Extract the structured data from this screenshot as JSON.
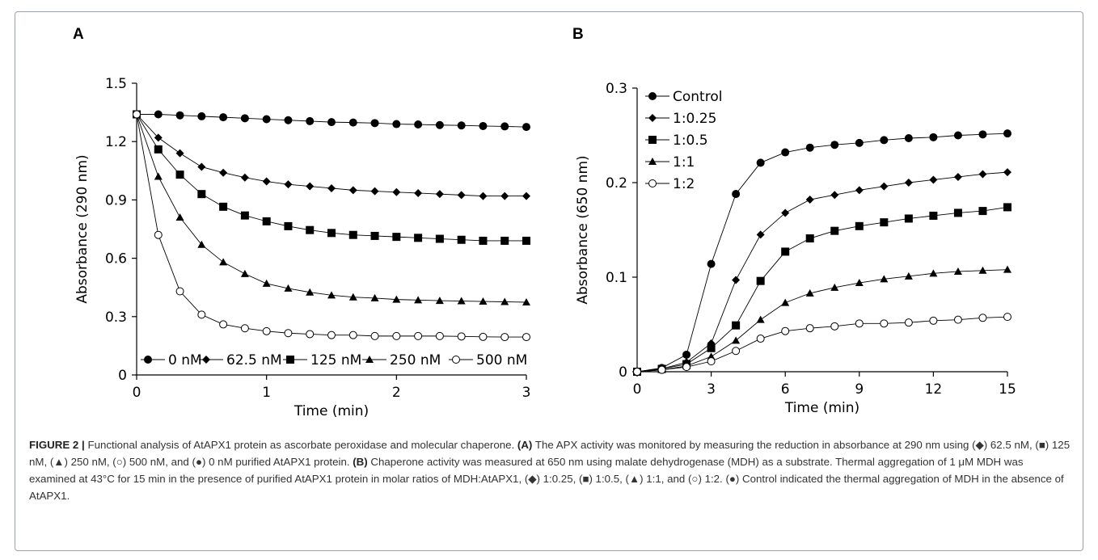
{
  "chart_data": [
    {
      "panel": "A",
      "type": "line",
      "xlabel": "Time (min)",
      "ylabel": "Absorbance (290 nm)",
      "xlim": [
        0,
        3
      ],
      "ylim": [
        0,
        1.5
      ],
      "xticks": [
        0,
        1,
        2,
        3
      ],
      "yticks": [
        0,
        0.3,
        0.6,
        0.9,
        1.2,
        1.5
      ],
      "ytick_labels": [
        "0",
        "0.3",
        "0.6",
        "0.9",
        "1.2",
        "1.5"
      ],
      "grid": false,
      "legend_position": "bottom",
      "x": [
        0,
        0.1667,
        0.3333,
        0.5,
        0.6667,
        0.8333,
        1.0,
        1.1667,
        1.3333,
        1.5,
        1.6667,
        1.8333,
        2.0,
        2.1667,
        2.3333,
        2.5,
        2.6667,
        2.8333,
        3.0
      ],
      "series": [
        {
          "name": "0 nM",
          "marker": "circle-filled",
          "values": [
            1.34,
            1.34,
            1.335,
            1.33,
            1.325,
            1.32,
            1.315,
            1.31,
            1.305,
            1.3,
            1.298,
            1.295,
            1.29,
            1.288,
            1.285,
            1.283,
            1.28,
            1.278,
            1.275
          ]
        },
        {
          "name": "62.5 nM",
          "marker": "diamond-filled",
          "values": [
            1.34,
            1.22,
            1.14,
            1.07,
            1.04,
            1.015,
            0.995,
            0.98,
            0.97,
            0.96,
            0.95,
            0.945,
            0.94,
            0.935,
            0.93,
            0.925,
            0.92,
            0.92,
            0.92
          ]
        },
        {
          "name": "125 nM",
          "marker": "square-filled",
          "values": [
            1.34,
            1.16,
            1.03,
            0.93,
            0.865,
            0.82,
            0.79,
            0.765,
            0.745,
            0.73,
            0.72,
            0.715,
            0.71,
            0.705,
            0.7,
            0.695,
            0.69,
            0.69,
            0.69
          ]
        },
        {
          "name": "250 nM",
          "marker": "triangle-filled",
          "values": [
            1.34,
            1.02,
            0.81,
            0.67,
            0.58,
            0.52,
            0.47,
            0.445,
            0.425,
            0.41,
            0.4,
            0.395,
            0.388,
            0.385,
            0.382,
            0.38,
            0.378,
            0.376,
            0.374
          ]
        },
        {
          "name": "500 nM",
          "marker": "circle-open",
          "values": [
            1.34,
            0.72,
            0.43,
            0.31,
            0.26,
            0.24,
            0.225,
            0.215,
            0.21,
            0.205,
            0.205,
            0.2,
            0.2,
            0.2,
            0.2,
            0.198,
            0.196,
            0.195,
            0.195
          ]
        }
      ]
    },
    {
      "panel": "B",
      "type": "line",
      "xlabel": "Time (min)",
      "ylabel": "Absorbance (650 nm)",
      "xlim": [
        0,
        15
      ],
      "ylim": [
        0,
        0.3
      ],
      "xticks": [
        0,
        3,
        6,
        9,
        12,
        15
      ],
      "yticks": [
        0,
        0.1,
        0.2,
        0.3
      ],
      "ytick_labels": [
        "0",
        "0.1",
        "0.2",
        "0.3"
      ],
      "grid": false,
      "legend_position": "top-left",
      "x": [
        0,
        1,
        2,
        3,
        4,
        5,
        6,
        7,
        8,
        9,
        10,
        11,
        12,
        13,
        14,
        15
      ],
      "series": [
        {
          "name": "Control",
          "marker": "circle-filled",
          "values": [
            0,
            0.004,
            0.018,
            0.114,
            0.188,
            0.221,
            0.232,
            0.237,
            0.24,
            0.242,
            0.245,
            0.247,
            0.248,
            0.25,
            0.251,
            0.252
          ]
        },
        {
          "name": "1:0.25",
          "marker": "diamond-filled",
          "values": [
            0,
            0.003,
            0.01,
            0.03,
            0.097,
            0.145,
            0.168,
            0.182,
            0.187,
            0.192,
            0.196,
            0.2,
            0.203,
            0.206,
            0.209,
            0.211
          ]
        },
        {
          "name": "1:0.5",
          "marker": "square-filled",
          "values": [
            0,
            0.003,
            0.008,
            0.025,
            0.049,
            0.096,
            0.127,
            0.141,
            0.149,
            0.154,
            0.158,
            0.162,
            0.165,
            0.168,
            0.17,
            0.174
          ]
        },
        {
          "name": "1:1",
          "marker": "triangle-filled",
          "values": [
            0,
            0.002,
            0.006,
            0.016,
            0.033,
            0.055,
            0.073,
            0.083,
            0.089,
            0.094,
            0.098,
            0.101,
            0.104,
            0.106,
            0.107,
            0.108
          ]
        },
        {
          "name": "1:2",
          "marker": "circle-open",
          "values": [
            0,
            0.002,
            0.005,
            0.011,
            0.022,
            0.035,
            0.043,
            0.046,
            0.048,
            0.051,
            0.051,
            0.052,
            0.054,
            0.055,
            0.057,
            0.058
          ]
        }
      ]
    }
  ],
  "caption": {
    "figure_number": "FIGURE 2 |",
    "intro": " Functional analysis of AtAPX1 protein as ascorbate peroxidase and molecular chaperone. ",
    "label_a": "(A)",
    "text_a": " The APX activity was monitored by measuring the reduction in absorbance at 290 nm using (◆) 62.5 nM, (■) 125 nM, (▲) 250 nM, (○) 500 nM, and (●) 0 nM purified AtAPX1 protein. ",
    "label_b": "(B)",
    "text_b": " Chaperone activity was measured at 650 nm using malate dehydrogenase (MDH) as a substrate. Thermal aggregation of 1 μM MDH was examined at 43°C for 15 min in the presence of purified AtAPX1 protein in molar ratios of MDH:AtAPX1, (◆) 1:0.25, (■) 1:0.5, (▲) 1:1, and (○) 1:2. (●) Control indicated the thermal aggregation of MDH in the absence of AtAPX1."
  }
}
